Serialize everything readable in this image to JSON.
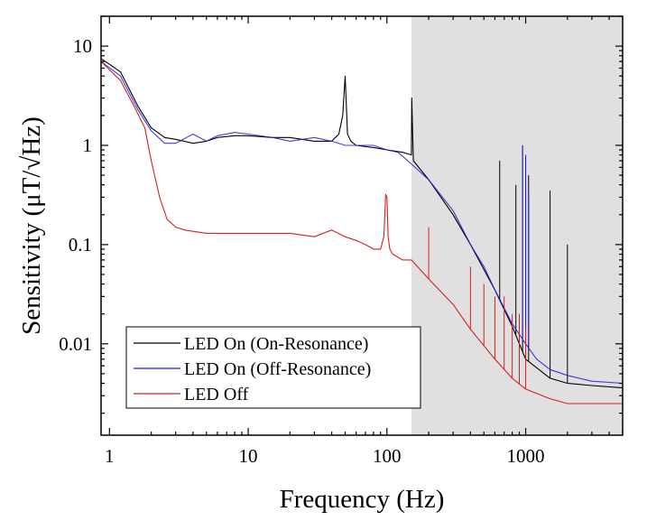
{
  "chart_data": {
    "type": "line",
    "title": "",
    "xlabel": "Frequency (Hz)",
    "ylabel": "Sensitivity (μT/√Hz)",
    "xscale": "log",
    "yscale": "log",
    "xlim": [
      0.87,
      5000
    ],
    "ylim": [
      0.0012,
      20
    ],
    "x_ticks": [
      1,
      10,
      100,
      1000
    ],
    "x_tick_labels": [
      "1",
      "10",
      "100",
      "1000"
    ],
    "y_ticks": [
      0.01,
      0.1,
      1,
      10
    ],
    "y_tick_labels": [
      "0.01",
      "0.1",
      "1",
      "10"
    ],
    "shaded_region": {
      "x_start": 150,
      "x_end": 5000,
      "color": "#e0e0e0"
    },
    "legend_position": "bottom-left",
    "series": [
      {
        "name": "LED On (On-Resonance)",
        "color": "#000000",
        "x": [
          0.87,
          1.2,
          1.6,
          2.0,
          2.5,
          3,
          4,
          5,
          6,
          8,
          10,
          15,
          20,
          30,
          40,
          45,
          48,
          50,
          52,
          55,
          60,
          80,
          100,
          130,
          150,
          151,
          155,
          200,
          300,
          400,
          600,
          800,
          1000,
          1500,
          2000,
          3000,
          5000
        ],
        "y": [
          7.5,
          5.5,
          2.5,
          1.5,
          1.2,
          1.15,
          1.05,
          1.1,
          1.2,
          1.25,
          1.25,
          1.2,
          1.2,
          1.1,
          1.1,
          1.3,
          2.0,
          5.0,
          1.3,
          1.1,
          1.0,
          0.95,
          0.9,
          0.85,
          0.8,
          3.0,
          0.7,
          0.45,
          0.2,
          0.1,
          0.035,
          0.015,
          0.007,
          0.0045,
          0.004,
          0.0038,
          0.0036
        ],
        "spikes": [
          {
            "x": 650,
            "y": 0.7
          },
          {
            "x": 850,
            "y": 0.4
          },
          {
            "x": 950,
            "y": 1.0
          },
          {
            "x": 1000,
            "y": 0.8
          },
          {
            "x": 1050,
            "y": 0.5
          },
          {
            "x": 1500,
            "y": 0.35
          },
          {
            "x": 2000,
            "y": 0.1
          }
        ]
      },
      {
        "name": "LED On (Off-Resonance)",
        "color": "#1f1fd0",
        "x": [
          0.87,
          1.2,
          1.6,
          2.0,
          2.5,
          3,
          4,
          5,
          6,
          8,
          10,
          15,
          20,
          30,
          40,
          50,
          60,
          80,
          100,
          120,
          150,
          200,
          300,
          400,
          500,
          600,
          800,
          1000,
          1200,
          1500,
          2000,
          3000,
          5000
        ],
        "y": [
          7.0,
          5.0,
          2.3,
          1.4,
          1.05,
          1.05,
          1.3,
          1.1,
          1.25,
          1.35,
          1.3,
          1.2,
          1.1,
          1.2,
          1.1,
          1.0,
          1.0,
          1.0,
          0.9,
          0.85,
          0.65,
          0.45,
          0.22,
          0.1,
          0.06,
          0.035,
          0.016,
          0.01,
          0.007,
          0.0055,
          0.0048,
          0.0042,
          0.004
        ],
        "spikes": [
          {
            "x": 950,
            "y": 1.0
          },
          {
            "x": 1000,
            "y": 0.8
          },
          {
            "x": 1050,
            "y": 0.35
          }
        ]
      },
      {
        "name": "LED Off",
        "color": "#d42020",
        "x": [
          0.87,
          1.2,
          1.5,
          1.8,
          2.0,
          2.3,
          2.6,
          3,
          3.5,
          5,
          7,
          10,
          15,
          20,
          30,
          40,
          50,
          60,
          70,
          80,
          90,
          95,
          98,
          100,
          102,
          105,
          110,
          130,
          150,
          200,
          300,
          400,
          600,
          800,
          1000,
          1500,
          2000,
          3000,
          5000
        ],
        "y": [
          7.0,
          4.5,
          2.5,
          1.5,
          0.7,
          0.3,
          0.18,
          0.15,
          0.14,
          0.13,
          0.13,
          0.13,
          0.13,
          0.13,
          0.12,
          0.14,
          0.12,
          0.11,
          0.1,
          0.09,
          0.09,
          0.12,
          0.32,
          0.3,
          0.12,
          0.09,
          0.08,
          0.07,
          0.07,
          0.045,
          0.025,
          0.014,
          0.007,
          0.0045,
          0.0035,
          0.0028,
          0.0025,
          0.0025,
          0.0025
        ],
        "spikes": [
          {
            "x": 200,
            "y": 0.15
          },
          {
            "x": 400,
            "y": 0.06
          },
          {
            "x": 500,
            "y": 0.04
          },
          {
            "x": 600,
            "y": 0.03
          },
          {
            "x": 700,
            "y": 0.03
          },
          {
            "x": 800,
            "y": 0.02
          },
          {
            "x": 900,
            "y": 0.02
          },
          {
            "x": 1000,
            "y": 0.015
          }
        ]
      }
    ]
  }
}
